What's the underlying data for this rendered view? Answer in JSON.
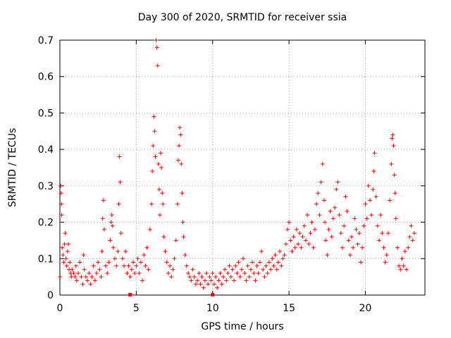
{
  "chart_data": {
    "type": "scatter",
    "title": "Day 300 of 2020, SRMTID for receiver ssia",
    "xlabel": "GPS time / hours",
    "ylabel": "SRMTID / TECUs",
    "xlim": [
      0,
      23.9
    ],
    "ylim": [
      0,
      0.7
    ],
    "x_ticks": [
      0,
      5,
      10,
      15,
      20
    ],
    "x_tick_labels": [
      "0",
      "5",
      "10",
      "15",
      "20"
    ],
    "y_ticks": [
      0,
      0.1,
      0.2,
      0.3,
      0.4,
      0.5,
      0.6,
      0.7
    ],
    "y_tick_labels": [
      "0",
      "0.1",
      "0.2",
      "0.3",
      "0.4",
      "0.5",
      "0.6",
      "0.7"
    ],
    "grid": true,
    "marker": "plus",
    "color": "#ff0000",
    "zero_markers": [
      4.6,
      10.0
    ],
    "series": [
      {
        "name": "SRMTID",
        "points": [
          [
            0.02,
            0.05
          ],
          [
            0.05,
            0.3
          ],
          [
            0.08,
            0.28
          ],
          [
            0.1,
            0.25
          ],
          [
            0.12,
            0.22
          ],
          [
            0.15,
            0.13
          ],
          [
            0.2,
            0.11
          ],
          [
            0.25,
            0.09
          ],
          [
            0.3,
            0.14
          ],
          [
            0.35,
            0.17
          ],
          [
            0.4,
            0.1
          ],
          [
            0.45,
            0.08
          ],
          [
            0.5,
            0.12
          ],
          [
            0.55,
            0.14
          ],
          [
            0.6,
            0.07
          ],
          [
            0.65,
            0.09
          ],
          [
            0.7,
            0.06
          ],
          [
            0.75,
            0.05
          ],
          [
            0.8,
            0.07
          ],
          [
            0.9,
            0.06
          ],
          [
            1.0,
            0.05
          ],
          [
            1.05,
            0.08
          ],
          [
            1.1,
            0.04
          ],
          [
            1.2,
            0.06
          ],
          [
            1.3,
            0.09
          ],
          [
            1.4,
            0.05
          ],
          [
            1.5,
            0.03
          ],
          [
            1.55,
            0.11
          ],
          [
            1.6,
            0.07
          ],
          [
            1.7,
            0.05
          ],
          [
            1.8,
            0.04
          ],
          [
            1.9,
            0.06
          ],
          [
            2.0,
            0.03
          ],
          [
            2.1,
            0.05
          ],
          [
            2.2,
            0.08
          ],
          [
            2.3,
            0.04
          ],
          [
            2.4,
            0.06
          ],
          [
            2.5,
            0.09
          ],
          [
            2.6,
            0.07
          ],
          [
            2.7,
            0.05
          ],
          [
            2.75,
            0.12
          ],
          [
            2.8,
            0.21
          ],
          [
            2.85,
            0.26
          ],
          [
            2.9,
            0.18
          ],
          [
            3.0,
            0.08
          ],
          [
            3.1,
            0.06
          ],
          [
            3.2,
            0.09
          ],
          [
            3.3,
            0.15
          ],
          [
            3.35,
            0.2
          ],
          [
            3.4,
            0.22
          ],
          [
            3.45,
            0.19
          ],
          [
            3.5,
            0.13
          ],
          [
            3.6,
            0.1
          ],
          [
            3.7,
            0.08
          ],
          [
            3.8,
            0.12
          ],
          [
            3.85,
            0.25
          ],
          [
            3.9,
            0.38
          ],
          [
            3.95,
            0.31
          ],
          [
            4.0,
            0.17
          ],
          [
            4.1,
            0.1
          ],
          [
            4.2,
            0.08
          ],
          [
            4.3,
            0.12
          ],
          [
            4.4,
            0.06
          ],
          [
            4.5,
            0.08
          ],
          [
            4.6,
            0.05
          ],
          [
            4.7,
            0.07
          ],
          [
            4.8,
            0.09
          ],
          [
            4.9,
            0.06
          ],
          [
            5.0,
            0.08
          ],
          [
            5.1,
            0.1
          ],
          [
            5.2,
            0.06
          ],
          [
            5.3,
            0.09
          ],
          [
            5.4,
            0.04
          ],
          [
            5.5,
            0.11
          ],
          [
            5.6,
            0.08
          ],
          [
            5.7,
            0.13
          ],
          [
            5.8,
            0.07
          ],
          [
            5.9,
            0.18
          ],
          [
            6.0,
            0.25
          ],
          [
            6.05,
            0.34
          ],
          [
            6.1,
            0.41
          ],
          [
            6.15,
            0.49
          ],
          [
            6.2,
            0.45
          ],
          [
            6.25,
            0.38
          ],
          [
            6.3,
            0.7
          ],
          [
            6.35,
            0.68
          ],
          [
            6.4,
            0.63
          ],
          [
            6.45,
            0.36
          ],
          [
            6.5,
            0.29
          ],
          [
            6.55,
            0.22
          ],
          [
            6.6,
            0.39
          ],
          [
            6.65,
            0.35
          ],
          [
            6.7,
            0.28
          ],
          [
            6.75,
            0.25
          ],
          [
            6.8,
            0.16
          ],
          [
            6.9,
            0.12
          ],
          [
            7.0,
            0.09
          ],
          [
            7.1,
            0.06
          ],
          [
            7.2,
            0.08
          ],
          [
            7.3,
            0.05
          ],
          [
            7.4,
            0.07
          ],
          [
            7.5,
            0.1
          ],
          [
            7.6,
            0.15
          ],
          [
            7.7,
            0.25
          ],
          [
            7.75,
            0.37
          ],
          [
            7.8,
            0.41
          ],
          [
            7.85,
            0.46
          ],
          [
            7.9,
            0.44
          ],
          [
            7.95,
            0.36
          ],
          [
            8.0,
            0.28
          ],
          [
            8.05,
            0.2
          ],
          [
            8.1,
            0.16
          ],
          [
            8.2,
            0.11
          ],
          [
            8.3,
            0.08
          ],
          [
            8.4,
            0.06
          ],
          [
            8.5,
            0.05
          ],
          [
            8.6,
            0.04
          ],
          [
            8.7,
            0.07
          ],
          [
            8.8,
            0.05
          ],
          [
            8.9,
            0.03
          ],
          [
            9.0,
            0.04
          ],
          [
            9.1,
            0.06
          ],
          [
            9.2,
            0.03
          ],
          [
            9.3,
            0.05
          ],
          [
            9.4,
            0.02
          ],
          [
            9.5,
            0.04
          ],
          [
            9.6,
            0.06
          ],
          [
            9.7,
            0.03
          ],
          [
            9.8,
            0.05
          ],
          [
            9.9,
            0.04
          ],
          [
            10.0,
            0.06
          ],
          [
            10.1,
            0.03
          ],
          [
            10.2,
            0.05
          ],
          [
            10.3,
            0.02
          ],
          [
            10.4,
            0.04
          ],
          [
            10.5,
            0.06
          ],
          [
            10.6,
            0.03
          ],
          [
            10.7,
            0.05
          ],
          [
            10.8,
            0.07
          ],
          [
            10.9,
            0.04
          ],
          [
            11.0,
            0.06
          ],
          [
            11.1,
            0.08
          ],
          [
            11.2,
            0.05
          ],
          [
            11.3,
            0.07
          ],
          [
            11.4,
            0.04
          ],
          [
            11.5,
            0.08
          ],
          [
            11.6,
            0.06
          ],
          [
            11.7,
            0.09
          ],
          [
            11.8,
            0.05
          ],
          [
            11.9,
            0.07
          ],
          [
            12.0,
            0.1
          ],
          [
            12.1,
            0.06
          ],
          [
            12.2,
            0.04
          ],
          [
            12.3,
            0.08
          ],
          [
            12.4,
            0.05
          ],
          [
            12.5,
            0.07
          ],
          [
            12.6,
            0.09
          ],
          [
            12.7,
            0.06
          ],
          [
            12.8,
            0.04
          ],
          [
            12.9,
            0.08
          ],
          [
            13.0,
            0.06
          ],
          [
            13.1,
            0.09
          ],
          [
            13.2,
            0.12
          ],
          [
            13.3,
            0.07
          ],
          [
            13.4,
            0.05
          ],
          [
            13.5,
            0.08
          ],
          [
            13.6,
            0.06
          ],
          [
            13.7,
            0.09
          ],
          [
            13.8,
            0.07
          ],
          [
            13.9,
            0.1
          ],
          [
            14.0,
            0.08
          ],
          [
            14.1,
            0.11
          ],
          [
            14.2,
            0.07
          ],
          [
            14.3,
            0.09
          ],
          [
            14.4,
            0.12
          ],
          [
            14.5,
            0.08
          ],
          [
            14.6,
            0.1
          ],
          [
            14.7,
            0.11
          ],
          [
            14.8,
            0.14
          ],
          [
            14.9,
            0.18
          ],
          [
            15.0,
            0.2
          ],
          [
            15.1,
            0.15
          ],
          [
            15.2,
            0.12
          ],
          [
            15.3,
            0.16
          ],
          [
            15.4,
            0.13
          ],
          [
            15.5,
            0.18
          ],
          [
            15.6,
            0.14
          ],
          [
            15.7,
            0.17
          ],
          [
            15.8,
            0.13
          ],
          [
            15.9,
            0.16
          ],
          [
            16.0,
            0.19
          ],
          [
            16.1,
            0.15
          ],
          [
            16.2,
            0.22
          ],
          [
            16.3,
            0.14
          ],
          [
            16.4,
            0.17
          ],
          [
            16.5,
            0.2
          ],
          [
            16.6,
            0.13
          ],
          [
            16.7,
            0.18
          ],
          [
            16.8,
            0.25
          ],
          [
            16.9,
            0.28
          ],
          [
            17.0,
            0.22
          ],
          [
            17.1,
            0.31
          ],
          [
            17.2,
            0.36
          ],
          [
            17.3,
            0.26
          ],
          [
            17.35,
            0.2
          ],
          [
            17.4,
            0.15
          ],
          [
            17.5,
            0.11
          ],
          [
            17.6,
            0.18
          ],
          [
            17.7,
            0.23
          ],
          [
            17.8,
            0.16
          ],
          [
            17.9,
            0.21
          ],
          [
            18.0,
            0.24
          ],
          [
            18.1,
            0.29
          ],
          [
            18.2,
            0.31
          ],
          [
            18.3,
            0.22
          ],
          [
            18.4,
            0.17
          ],
          [
            18.5,
            0.13
          ],
          [
            18.6,
            0.19
          ],
          [
            18.7,
            0.27
          ],
          [
            18.8,
            0.23
          ],
          [
            18.9,
            0.15
          ],
          [
            19.0,
            0.11
          ],
          [
            19.1,
            0.16
          ],
          [
            19.2,
            0.13
          ],
          [
            19.3,
            0.21
          ],
          [
            19.4,
            0.18
          ],
          [
            19.5,
            0.14
          ],
          [
            19.6,
            0.17
          ],
          [
            19.7,
            0.09
          ],
          [
            19.8,
            0.13
          ],
          [
            19.9,
            0.19
          ],
          [
            20.0,
            0.25
          ],
          [
            20.1,
            0.21
          ],
          [
            20.2,
            0.3
          ],
          [
            20.3,
            0.26
          ],
          [
            20.4,
            0.22
          ],
          [
            20.5,
            0.29
          ],
          [
            20.55,
            0.34
          ],
          [
            20.6,
            0.39
          ],
          [
            20.7,
            0.27
          ],
          [
            20.8,
            0.19
          ],
          [
            20.9,
            0.15
          ],
          [
            21.0,
            0.22
          ],
          [
            21.1,
            0.17
          ],
          [
            21.2,
            0.13
          ],
          [
            21.3,
            0.09
          ],
          [
            21.4,
            0.11
          ],
          [
            21.5,
            0.17
          ],
          [
            21.6,
            0.26
          ],
          [
            21.7,
            0.36
          ],
          [
            21.75,
            0.43
          ],
          [
            21.8,
            0.44
          ],
          [
            21.85,
            0.41
          ],
          [
            21.9,
            0.33
          ],
          [
            21.95,
            0.28
          ],
          [
            22.0,
            0.21
          ],
          [
            22.1,
            0.13
          ],
          [
            22.2,
            0.08
          ],
          [
            22.3,
            0.07
          ],
          [
            22.4,
            0.1
          ],
          [
            22.5,
            0.08
          ],
          [
            22.6,
            0.12
          ],
          [
            22.7,
            0.07
          ],
          [
            22.8,
            0.13
          ],
          [
            22.9,
            0.16
          ],
          [
            23.0,
            0.19
          ],
          [
            23.1,
            0.15
          ],
          [
            23.2,
            0.17
          ]
        ]
      }
    ]
  }
}
